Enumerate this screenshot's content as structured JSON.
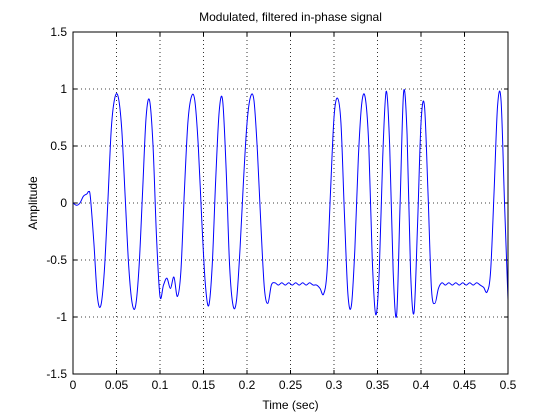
{
  "chart_data": {
    "type": "line",
    "title": "Modulated, filtered in-phase signal",
    "xlabel": "Time (sec)",
    "ylabel": "Amplitude",
    "xlim": [
      0,
      0.5
    ],
    "ylim": [
      -1.5,
      1.5
    ],
    "xticks": [
      0,
      0.05,
      0.1,
      0.15,
      0.2,
      0.25,
      0.3,
      0.35,
      0.4,
      0.45,
      0.5
    ],
    "xtick_labels": [
      "0",
      "0.05",
      "0.1",
      "0.15",
      "0.2",
      "0.25",
      "0.3",
      "0.35",
      "0.4",
      "0.45",
      "0.5"
    ],
    "yticks": [
      -1.5,
      -1,
      -0.5,
      0,
      0.5,
      1,
      1.5
    ],
    "ytick_labels": [
      "-1.5",
      "-1",
      "-0.5",
      "0",
      "0.5",
      "1",
      "1.5"
    ],
    "grid": true,
    "line_color": "#0000ff",
    "series": [
      {
        "x": [
          0,
          0.004,
          0.008,
          0.012,
          0.016,
          0.018,
          0.02,
          0.024,
          0.028,
          0.032,
          0.036,
          0.04,
          0.044,
          0.048,
          0.052,
          0.056,
          0.06,
          0.064,
          0.068,
          0.072,
          0.076,
          0.08,
          0.084,
          0.088,
          0.092,
          0.096,
          0.1,
          0.104,
          0.108,
          0.112,
          0.116,
          0.12,
          0.124,
          0.128,
          0.132,
          0.136,
          0.14,
          0.144,
          0.148,
          0.152,
          0.156,
          0.16,
          0.164,
          0.168,
          0.172,
          0.176,
          0.18,
          0.184,
          0.188,
          0.192,
          0.196,
          0.2,
          0.204,
          0.208,
          0.212,
          0.216,
          0.22,
          0.224,
          0.228,
          0.232,
          0.236,
          0.24,
          0.244,
          0.248,
          0.252,
          0.256,
          0.26,
          0.264,
          0.268,
          0.272,
          0.276,
          0.28,
          0.284,
          0.288,
          0.292,
          0.296,
          0.3,
          0.304,
          0.308,
          0.312,
          0.316,
          0.32,
          0.324,
          0.328,
          0.332,
          0.336,
          0.34,
          0.344,
          0.348,
          0.352,
          0.356,
          0.36,
          0.364,
          0.368,
          0.372,
          0.376,
          0.38,
          0.384,
          0.388,
          0.392,
          0.396,
          0.4,
          0.404,
          0.408,
          0.412,
          0.416,
          0.42,
          0.424,
          0.428,
          0.432,
          0.436,
          0.44,
          0.444,
          0.448,
          0.452,
          0.456,
          0.46,
          0.464,
          0.468,
          0.472,
          0.476,
          0.48,
          0.484,
          0.488,
          0.492,
          0.496,
          0.5
        ],
        "y": [
          0,
          -0.02,
          0.0,
          0.06,
          0.08,
          0.1,
          0.05,
          -0.35,
          -0.82,
          -0.9,
          -0.6,
          0.0,
          0.65,
          0.92,
          0.93,
          0.65,
          0.05,
          -0.55,
          -0.88,
          -0.9,
          -0.55,
          0.1,
          0.75,
          0.9,
          0.5,
          -0.3,
          -0.82,
          -0.72,
          -0.66,
          -0.75,
          -0.65,
          -0.82,
          -0.6,
          0.1,
          0.7,
          0.93,
          0.9,
          0.5,
          -0.15,
          -0.7,
          -0.9,
          -0.55,
          0.2,
          0.8,
          0.9,
          0.3,
          -0.55,
          -0.9,
          -0.85,
          -0.4,
          0.2,
          0.7,
          0.93,
          0.9,
          0.45,
          -0.2,
          -0.75,
          -0.88,
          -0.72,
          -0.7,
          -0.72,
          -0.7,
          -0.72,
          -0.7,
          -0.72,
          -0.7,
          -0.72,
          -0.7,
          -0.72,
          -0.7,
          -0.72,
          -0.72,
          -0.75,
          -0.8,
          -0.6,
          0.1,
          0.75,
          0.92,
          0.7,
          -0.1,
          -0.8,
          -0.9,
          -0.4,
          0.4,
          0.88,
          0.92,
          0.5,
          -0.5,
          -0.98,
          -0.6,
          0.4,
          0.98,
          0.5,
          -0.6,
          -0.98,
          0.0,
          0.97,
          0.6,
          -0.6,
          -0.96,
          -0.2,
          0.7,
          0.85,
          0.1,
          -0.75,
          -0.88,
          -0.75,
          -0.7,
          -0.72,
          -0.7,
          -0.72,
          -0.7,
          -0.72,
          -0.7,
          -0.72,
          -0.7,
          -0.72,
          -0.7,
          -0.72,
          -0.74,
          -0.78,
          -0.6,
          0.1,
          0.85,
          0.9,
          0.0,
          -0.85
        ]
      }
    ]
  }
}
